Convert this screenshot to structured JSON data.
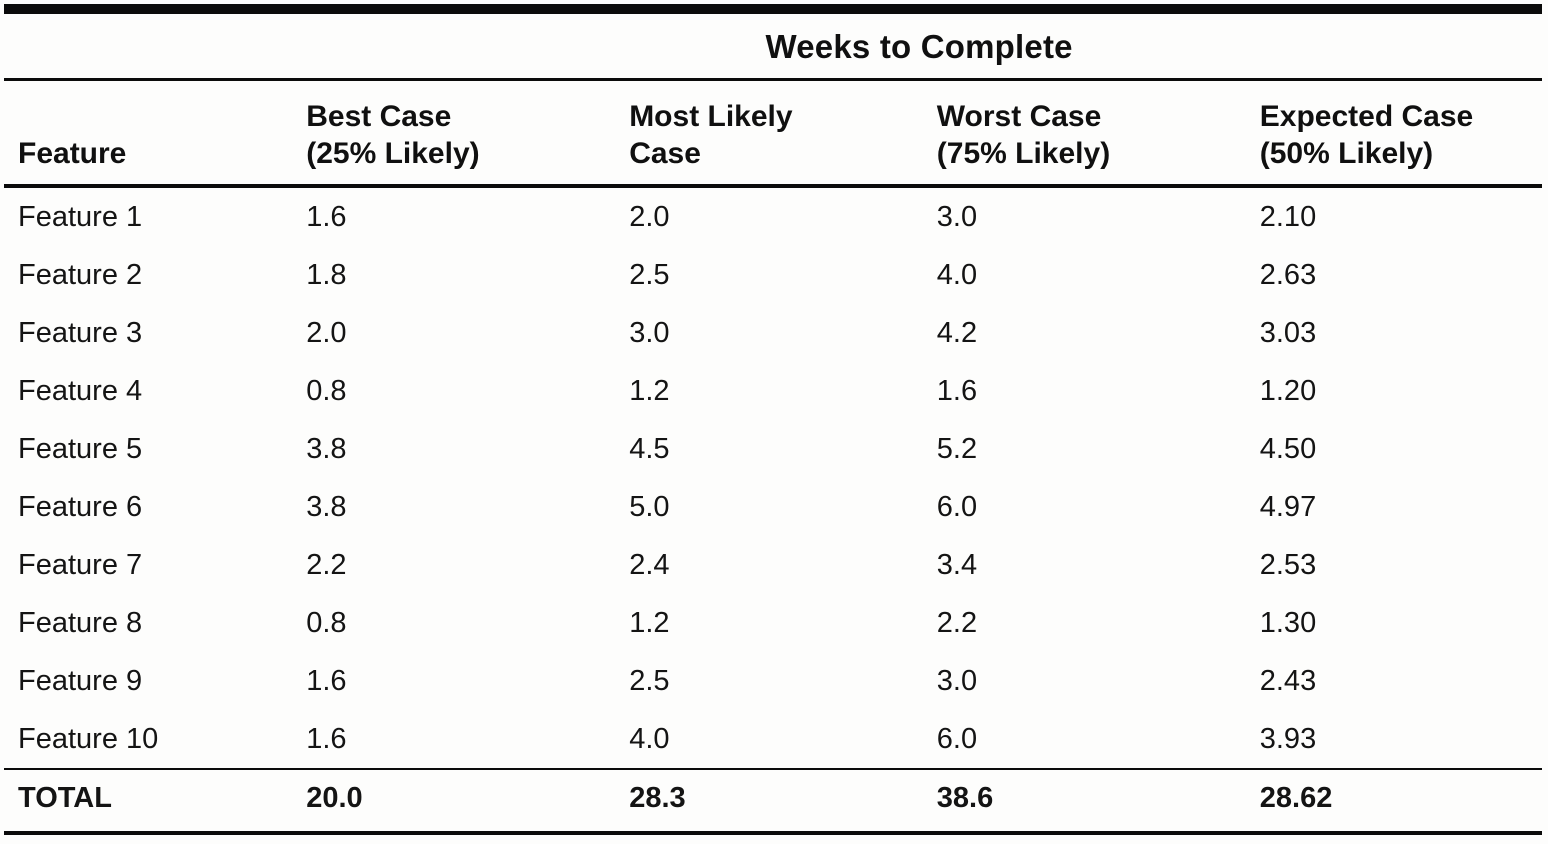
{
  "table": {
    "title": "Weeks to Complete",
    "headers": [
      "Feature",
      "Best Case\n(25% Likely)",
      "Most Likely\nCase",
      "Worst Case\n(75% Likely)",
      "Expected Case\n(50% Likely)"
    ],
    "rows": [
      {
        "cells": [
          "Feature 1",
          "1.6",
          "2.0",
          "3.0",
          "2.10"
        ],
        "bold": false
      },
      {
        "cells": [
          "Feature 2",
          "1.8",
          "2.5",
          "4.0",
          "2.63"
        ],
        "bold": false
      },
      {
        "cells": [
          "Feature 3",
          "2.0",
          "3.0",
          "4.2",
          "3.03"
        ],
        "bold": false
      },
      {
        "cells": [
          "Feature 4",
          "0.8",
          "1.2",
          "1.6",
          "1.20"
        ],
        "bold": false
      },
      {
        "cells": [
          "Feature 5",
          "3.8",
          "4.5",
          "5.2",
          "4.50"
        ],
        "bold": false
      },
      {
        "cells": [
          "Feature 6",
          "3.8",
          "5.0",
          "6.0",
          "4.97"
        ],
        "bold": false
      },
      {
        "cells": [
          "Feature 7",
          "2.2",
          "2.4",
          "3.4",
          "2.53"
        ],
        "bold": false
      },
      {
        "cells": [
          "Feature 8",
          "0.8",
          "1.2",
          "2.2",
          "1.30"
        ],
        "bold": false
      },
      {
        "cells": [
          "Feature 9",
          "1.6",
          "2.5",
          "3.0",
          "2.43"
        ],
        "bold": false
      },
      {
        "cells": [
          "Feature 10",
          "1.6",
          "4.0",
          "6.0",
          "3.93"
        ],
        "bold": false
      },
      {
        "cells": [
          "TOTAL",
          "20.0",
          "28.3",
          "38.6",
          "28.62"
        ],
        "bold": true
      }
    ]
  },
  "chart_data": {
    "type": "table",
    "title": "Weeks to Complete",
    "columns": [
      "Feature",
      "Best Case (25% Likely)",
      "Most Likely Case",
      "Worst Case (75% Likely)",
      "Expected Case (50% Likely)"
    ],
    "rows": [
      [
        "Feature 1",
        1.6,
        2.0,
        3.0,
        2.1
      ],
      [
        "Feature 2",
        1.8,
        2.5,
        4.0,
        2.63
      ],
      [
        "Feature 3",
        2.0,
        3.0,
        4.2,
        3.03
      ],
      [
        "Feature 4",
        0.8,
        1.2,
        1.6,
        1.2
      ],
      [
        "Feature 5",
        3.8,
        4.5,
        5.2,
        4.5
      ],
      [
        "Feature 6",
        3.8,
        5.0,
        6.0,
        4.97
      ],
      [
        "Feature 7",
        2.2,
        2.4,
        3.4,
        2.53
      ],
      [
        "Feature 8",
        0.8,
        1.2,
        2.2,
        1.3
      ],
      [
        "Feature 9",
        1.6,
        2.5,
        3.0,
        2.43
      ],
      [
        "Feature 10",
        1.6,
        4.0,
        6.0,
        3.93
      ],
      [
        "TOTAL",
        20.0,
        28.3,
        38.6,
        28.62
      ]
    ]
  }
}
